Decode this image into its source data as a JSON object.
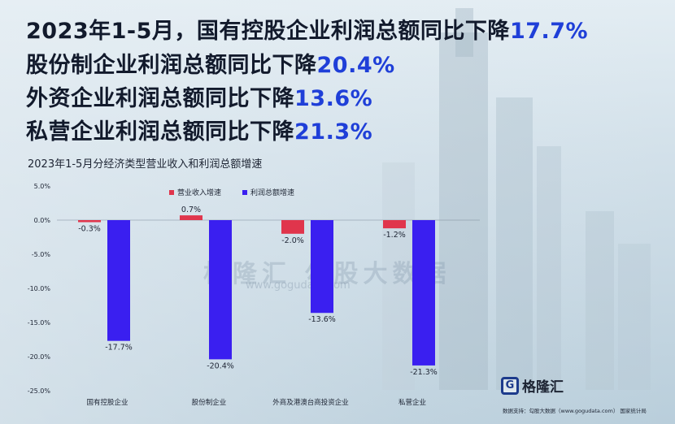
{
  "headlines": [
    {
      "text": "2023年1-5月，国有控股企业利润总额同比下降",
      "pct": "17.7%"
    },
    {
      "text": "股份制企业利润总额同比下降",
      "pct": "20.4%"
    },
    {
      "text": "外资企业利润总额同比下降",
      "pct": "13.6%"
    },
    {
      "text": "私营企业利润总额同比下降",
      "pct": "21.3%"
    }
  ],
  "watermark": {
    "text": "格隆汇  勾股大数据",
    "url": "www.gogudata.com"
  },
  "logo": {
    "mark": "G",
    "text": "格隆汇"
  },
  "source": "数据支持：勾股大数据（www.gogudata.com）  国家统计局",
  "colors": {
    "revenue": "#e0354c",
    "profit": "#3a1ff0",
    "pct": "#1f3fd8"
  },
  "chart_data": {
    "type": "bar",
    "title": "2023年1-5月分经济类型营业收入和利润总额增速",
    "categories": [
      "国有控股企业",
      "股份制企业",
      "外商及港澳台商投资企业",
      "私营企业"
    ],
    "series": [
      {
        "name": "营业收入增速",
        "values": [
          -0.3,
          0.7,
          -2.0,
          -1.2
        ],
        "labels": [
          "-0.3%",
          "0.7%",
          "-2.0%",
          "-1.2%"
        ]
      },
      {
        "name": "利润总额增速",
        "values": [
          -17.7,
          -20.4,
          -13.6,
          -21.3
        ],
        "labels": [
          "-17.7%",
          "-20.4%",
          "-13.6%",
          "-21.3%"
        ]
      }
    ],
    "yticks": [
      5,
      0,
      -5,
      -10,
      -15,
      -20,
      -25
    ],
    "ytick_labels": [
      "5.0%",
      "0.0%",
      "-5.0%",
      "-10.0%",
      "-15.0%",
      "-20.0%",
      "-25.0%"
    ],
    "ylim": [
      -25,
      5
    ],
    "legend_position": "top-center",
    "grid": false
  }
}
